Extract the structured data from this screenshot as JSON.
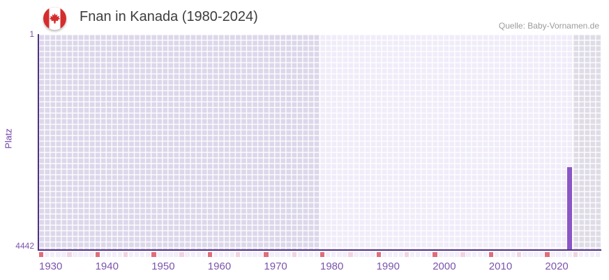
{
  "header": {
    "title": "Fnan in Kanada (1980-2024)",
    "source": "Quelle: Baby-Vornamen.de",
    "flag_icon": "canada-flag-icon"
  },
  "chart_data": {
    "type": "bar",
    "title": "Fnan in Kanada (1980-2024)",
    "ylabel": "Platz",
    "xlabel": "",
    "y_axis": {
      "min": 1,
      "max": 4442,
      "inverted": true,
      "ticks": [
        "1",
        "4442"
      ]
    },
    "x_axis": {
      "visible_start": 1930,
      "visible_end": 2030,
      "tick_years": [
        1930,
        1940,
        1950,
        1960,
        1970,
        1980,
        1990,
        2000,
        2010,
        2020
      ],
      "minor_tick_every": 5
    },
    "highlight_range": {
      "start": 1980,
      "end": 2024
    },
    "series": [
      {
        "name": "Platz",
        "points": [
          {
            "year": 2024,
            "rank": 2750
          }
        ]
      }
    ],
    "legend": false,
    "grid": true
  },
  "colors": {
    "bar": "#8b57c7",
    "axis": "#4f3084",
    "tick_label": "#7a54ab",
    "axis_title": "#6f3fa5",
    "ruler_decade": "#df6e7a",
    "ruler_half_decade": "#f1d4e0",
    "ruler_year": "#f2eefa",
    "plot_in_range": "#f0ecf9",
    "plot_before_range": "#dcd7ea",
    "plot_after_range": "#dfdce7",
    "title_text": "#3d3d3d",
    "source_text": "#9b9b9b",
    "flag_red": "#d52d2d",
    "flag_white": "#ffffff"
  }
}
